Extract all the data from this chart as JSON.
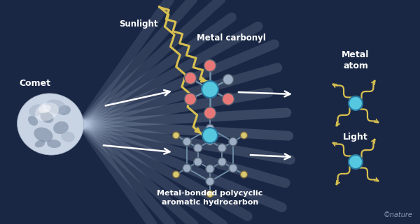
{
  "bg_color": "#1a2744",
  "text_color": "#ffffff",
  "comet_label": "Comet",
  "sunlight_label": "Sunlight",
  "metal_carbonyl_label": "Metal carbonyl",
  "metal_bonded_label": "Metal-bonded polycyclic\naromatic hydrocarbon",
  "metal_atom_label": "Metal\natom",
  "light_label": "Light",
  "nature_label": "©nature",
  "cyan_color": "#55c8e0",
  "pink_color": "#e87878",
  "gray_color": "#9daec4",
  "yellow_color": "#d8c870",
  "white_color": "#ffffff",
  "sunlight_color": "#d8c050",
  "ray_color": "#c0d0e8",
  "bond_color": "#7090a8",
  "comet_body": "#c8d4e4",
  "comet_dark": "#7888a0",
  "comet_mid": "#a0b0c4"
}
